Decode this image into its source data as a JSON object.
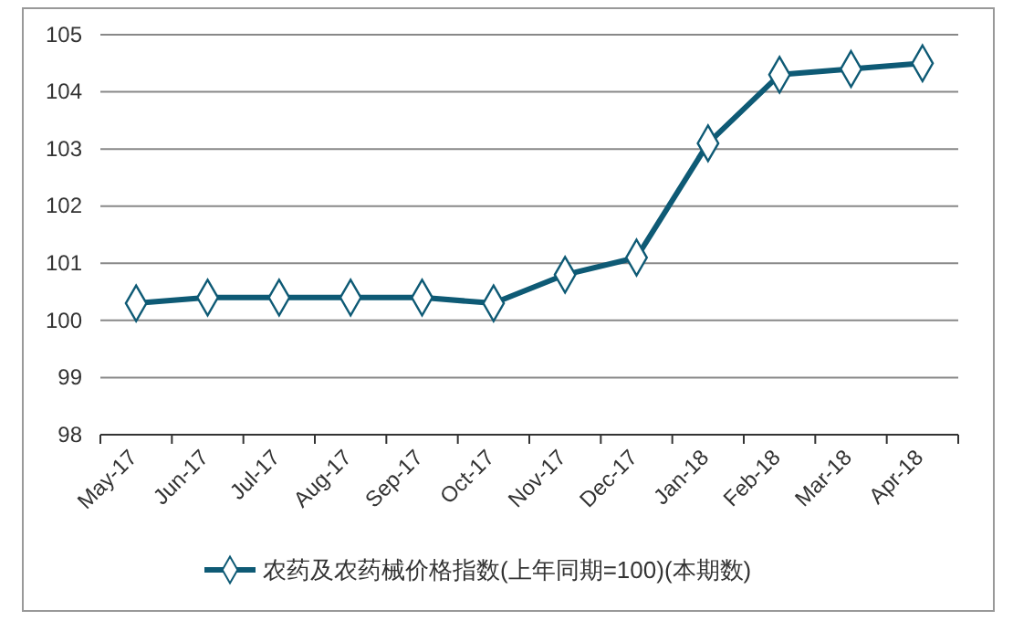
{
  "chart_data": {
    "type": "line",
    "categories": [
      "May-17",
      "Jun-17",
      "Jul-17",
      "Aug-17",
      "Sep-17",
      "Oct-17",
      "Nov-17",
      "Dec-17",
      "Jan-18",
      "Feb-18",
      "Mar-18",
      "Apr-18"
    ],
    "series": [
      {
        "name": "农药及农药械价格指数(上年同期=100)(本期数)",
        "color": "#0e5a75",
        "values": [
          100.3,
          100.4,
          100.4,
          100.4,
          100.4,
          100.3,
          100.8,
          101.1,
          103.1,
          104.3,
          104.4,
          104.5
        ]
      }
    ],
    "ylim": [
      98,
      105
    ],
    "yticks": [
      98,
      99,
      100,
      101,
      102,
      103,
      104,
      105
    ],
    "grid": "y",
    "legend": "bottom",
    "marker": "diamond",
    "line_style": "solid"
  }
}
